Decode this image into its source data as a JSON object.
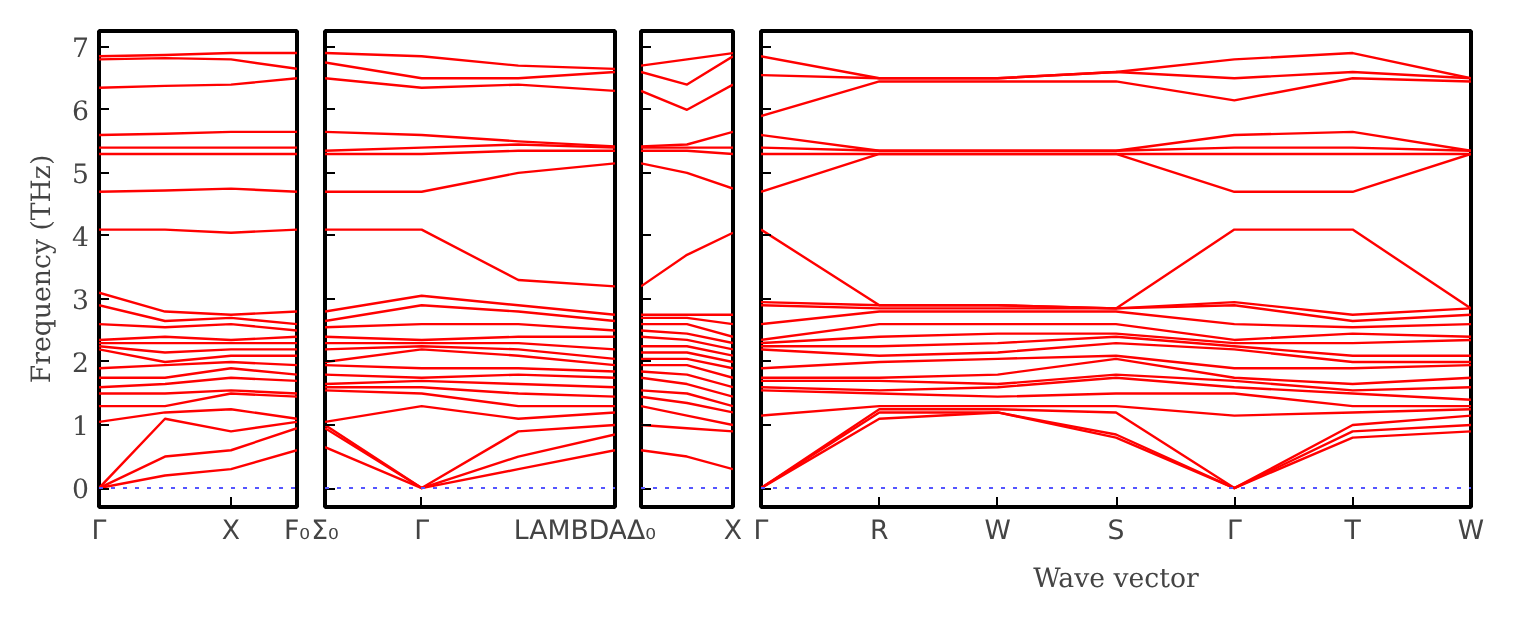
{
  "chart_data": [
    {
      "type": "line",
      "ylabel": "Frequency (THz)",
      "categories": [
        "Γ",
        null,
        "X",
        "F₀"
      ],
      "ylim": [
        -0.3,
        7.25
      ],
      "yticks": [
        0,
        1,
        2,
        3,
        4,
        5,
        6,
        7
      ],
      "ref_lines": [
        {
          "axis": "y",
          "value": 0,
          "label": null,
          "color": "#5555ff",
          "line_style": "dotted"
        }
      ],
      "line_style": "solid",
      "marker": "none",
      "series": [
        {
          "color": "#ff0000",
          "values": [
            0,
            0.2,
            0.3,
            0.6
          ]
        },
        {
          "color": "#ff0000",
          "values": [
            0,
            0.5,
            0.6,
            0.95
          ]
        },
        {
          "color": "#ff0000",
          "values": [
            0,
            1.1,
            0.9,
            1.05
          ]
        },
        {
          "color": "#ff0000",
          "values": [
            1.05,
            1.2,
            1.25,
            1.1
          ]
        },
        {
          "color": "#ff0000",
          "values": [
            1.3,
            1.3,
            1.5,
            1.45
          ]
        },
        {
          "color": "#ff0000",
          "values": [
            1.5,
            1.5,
            1.55,
            1.5
          ]
        },
        {
          "color": "#ff0000",
          "values": [
            1.6,
            1.65,
            1.75,
            1.7
          ]
        },
        {
          "color": "#ff0000",
          "values": [
            1.75,
            1.75,
            1.9,
            1.8
          ]
        },
        {
          "color": "#ff0000",
          "values": [
            1.9,
            1.95,
            2.0,
            1.95
          ]
        },
        {
          "color": "#ff0000",
          "values": [
            2.2,
            2.0,
            2.1,
            2.1
          ]
        },
        {
          "color": "#ff0000",
          "values": [
            2.25,
            2.15,
            2.2,
            2.2
          ]
        },
        {
          "color": "#ff0000",
          "values": [
            2.3,
            2.3,
            2.3,
            2.3
          ]
        },
        {
          "color": "#ff0000",
          "values": [
            2.35,
            2.4,
            2.35,
            2.4
          ]
        },
        {
          "color": "#ff0000",
          "values": [
            2.6,
            2.55,
            2.6,
            2.5
          ]
        },
        {
          "color": "#ff0000",
          "values": [
            2.9,
            2.65,
            2.7,
            2.6
          ]
        },
        {
          "color": "#ff0000",
          "values": [
            3.1,
            2.8,
            2.75,
            2.8
          ]
        },
        {
          "color": "#ff0000",
          "values": [
            4.1,
            4.1,
            4.05,
            4.1
          ]
        },
        {
          "color": "#ff0000",
          "values": [
            4.7,
            4.72,
            4.75,
            4.7
          ]
        },
        {
          "color": "#ff0000",
          "values": [
            5.3,
            5.3,
            5.3,
            5.3
          ]
        },
        {
          "color": "#ff0000",
          "values": [
            5.4,
            5.4,
            5.4,
            5.4
          ]
        },
        {
          "color": "#ff0000",
          "values": [
            5.6,
            5.62,
            5.65,
            5.65
          ]
        },
        {
          "color": "#ff0000",
          "values": [
            6.35,
            6.38,
            6.4,
            6.5
          ]
        },
        {
          "color": "#ff0000",
          "values": [
            6.8,
            6.82,
            6.8,
            6.65
          ]
        },
        {
          "color": "#ff0000",
          "values": [
            6.85,
            6.87,
            6.9,
            6.9
          ]
        }
      ]
    },
    {
      "type": "line",
      "tick_labels": "x",
      "categories": [
        "Σ₀",
        "Γ",
        null,
        "LAMBDA"
      ],
      "ylim": [
        -0.3,
        7.25
      ],
      "yticks": [
        0,
        1,
        2,
        3,
        4,
        5,
        6,
        7
      ],
      "ref_lines": [
        {
          "axis": "y",
          "value": 0,
          "label": null,
          "color": "#5555ff",
          "line_style": "dotted"
        }
      ],
      "line_style": "solid",
      "marker": "none",
      "series": [
        {
          "color": "#ff0000",
          "values": [
            0.65,
            0,
            0.3,
            0.6
          ]
        },
        {
          "color": "#ff0000",
          "values": [
            0.95,
            0,
            0.5,
            0.85
          ]
        },
        {
          "color": "#ff0000",
          "values": [
            1.0,
            0,
            0.9,
            1.0
          ]
        },
        {
          "color": "#ff0000",
          "values": [
            1.05,
            1.3,
            1.1,
            1.2
          ]
        },
        {
          "color": "#ff0000",
          "values": [
            1.55,
            1.5,
            1.3,
            1.3
          ]
        },
        {
          "color": "#ff0000",
          "values": [
            1.6,
            1.6,
            1.5,
            1.45
          ]
        },
        {
          "color": "#ff0000",
          "values": [
            1.65,
            1.7,
            1.65,
            1.6
          ]
        },
        {
          "color": "#ff0000",
          "values": [
            1.8,
            1.75,
            1.8,
            1.75
          ]
        },
        {
          "color": "#ff0000",
          "values": [
            1.95,
            1.9,
            1.9,
            1.85
          ]
        },
        {
          "color": "#ff0000",
          "values": [
            2.0,
            2.2,
            2.1,
            1.95
          ]
        },
        {
          "color": "#ff0000",
          "values": [
            2.2,
            2.25,
            2.2,
            2.05
          ]
        },
        {
          "color": "#ff0000",
          "values": [
            2.3,
            2.3,
            2.3,
            2.2
          ]
        },
        {
          "color": "#ff0000",
          "values": [
            2.4,
            2.35,
            2.4,
            2.4
          ]
        },
        {
          "color": "#ff0000",
          "values": [
            2.55,
            2.6,
            2.6,
            2.5
          ]
        },
        {
          "color": "#ff0000",
          "values": [
            2.65,
            2.9,
            2.8,
            2.65
          ]
        },
        {
          "color": "#ff0000",
          "values": [
            2.8,
            3.05,
            2.9,
            2.75
          ]
        },
        {
          "color": "#ff0000",
          "values": [
            4.1,
            4.1,
            3.3,
            3.2
          ]
        },
        {
          "color": "#ff0000",
          "values": [
            4.7,
            4.7,
            5.0,
            5.15
          ]
        },
        {
          "color": "#ff0000",
          "values": [
            5.3,
            5.3,
            5.35,
            5.35
          ]
        },
        {
          "color": "#ff0000",
          "values": [
            5.35,
            5.4,
            5.45,
            5.4
          ]
        },
        {
          "color": "#ff0000",
          "values": [
            5.65,
            5.6,
            5.5,
            5.42
          ]
        },
        {
          "color": "#ff0000",
          "values": [
            6.5,
            6.35,
            6.4,
            6.3
          ]
        },
        {
          "color": "#ff0000",
          "values": [
            6.75,
            6.5,
            6.5,
            6.6
          ]
        },
        {
          "color": "#ff0000",
          "values": [
            6.9,
            6.85,
            6.7,
            6.65
          ]
        }
      ]
    },
    {
      "type": "line",
      "tick_labels": "x",
      "categories": [
        "Δ₀",
        null,
        "X"
      ],
      "ylim": [
        -0.3,
        7.25
      ],
      "yticks": [
        0,
        1,
        2,
        3,
        4,
        5,
        6,
        7
      ],
      "ref_lines": [
        {
          "axis": "y",
          "value": 0,
          "label": null,
          "color": "#5555ff",
          "line_style": "dotted"
        }
      ],
      "line_style": "solid",
      "marker": "none",
      "series": [
        {
          "color": "#ff0000",
          "values": [
            0.6,
            0.5,
            0.3
          ]
        },
        {
          "color": "#ff0000",
          "values": [
            1.0,
            0.95,
            0.9
          ]
        },
        {
          "color": "#ff0000",
          "values": [
            1.3,
            1.15,
            1.0
          ]
        },
        {
          "color": "#ff0000",
          "values": [
            1.45,
            1.35,
            1.2
          ]
        },
        {
          "color": "#ff0000",
          "values": [
            1.55,
            1.5,
            1.3
          ]
        },
        {
          "color": "#ff0000",
          "values": [
            1.75,
            1.65,
            1.45
          ]
        },
        {
          "color": "#ff0000",
          "values": [
            1.85,
            1.8,
            1.6
          ]
        },
        {
          "color": "#ff0000",
          "values": [
            1.95,
            1.95,
            1.75
          ]
        },
        {
          "color": "#ff0000",
          "values": [
            2.05,
            2.05,
            1.9
          ]
        },
        {
          "color": "#ff0000",
          "values": [
            2.15,
            2.15,
            2.0
          ]
        },
        {
          "color": "#ff0000",
          "values": [
            2.25,
            2.25,
            2.1
          ]
        },
        {
          "color": "#ff0000",
          "values": [
            2.4,
            2.35,
            2.2
          ]
        },
        {
          "color": "#ff0000",
          "values": [
            2.5,
            2.45,
            2.3
          ]
        },
        {
          "color": "#ff0000",
          "values": [
            2.6,
            2.6,
            2.4
          ]
        },
        {
          "color": "#ff0000",
          "values": [
            2.7,
            2.7,
            2.6
          ]
        },
        {
          "color": "#ff0000",
          "values": [
            2.75,
            2.75,
            2.75
          ]
        },
        {
          "color": "#ff0000",
          "values": [
            3.2,
            3.7,
            4.05
          ]
        },
        {
          "color": "#ff0000",
          "values": [
            5.15,
            5.0,
            4.75
          ]
        },
        {
          "color": "#ff0000",
          "values": [
            5.35,
            5.35,
            5.3
          ]
        },
        {
          "color": "#ff0000",
          "values": [
            5.4,
            5.4,
            5.4
          ]
        },
        {
          "color": "#ff0000",
          "values": [
            5.42,
            5.45,
            5.65
          ]
        },
        {
          "color": "#ff0000",
          "values": [
            6.3,
            6.0,
            6.4
          ]
        },
        {
          "color": "#ff0000",
          "values": [
            6.6,
            6.4,
            6.85
          ]
        },
        {
          "color": "#ff0000",
          "values": [
            6.7,
            6.8,
            6.9
          ]
        }
      ]
    },
    {
      "type": "line",
      "tick_labels": "x",
      "xlabel": "Wave vector",
      "categories": [
        "Γ",
        "R",
        "W",
        "S",
        "Γ",
        "T",
        "W"
      ],
      "ylim": [
        -0.3,
        7.25
      ],
      "yticks": [
        0,
        1,
        2,
        3,
        4,
        5,
        6,
        7
      ],
      "ref_lines": [
        {
          "axis": "y",
          "value": 0,
          "label": null,
          "color": "#5555ff",
          "line_style": "dotted"
        }
      ],
      "line_style": "solid",
      "marker": "none",
      "series": [
        {
          "color": "#ff0000",
          "values": [
            0,
            1.1,
            1.2,
            0.8,
            0,
            0.8,
            0.9
          ]
        },
        {
          "color": "#ff0000",
          "values": [
            0,
            1.2,
            1.2,
            0.85,
            0,
            0.9,
            1.0
          ]
        },
        {
          "color": "#ff0000",
          "values": [
            0,
            1.25,
            1.25,
            1.2,
            0,
            1.0,
            1.15
          ]
        },
        {
          "color": "#ff0000",
          "values": [
            1.15,
            1.3,
            1.3,
            1.3,
            1.15,
            1.2,
            1.25
          ]
        },
        {
          "color": "#ff0000",
          "values": [
            1.55,
            1.5,
            1.45,
            1.5,
            1.5,
            1.3,
            1.3
          ]
        },
        {
          "color": "#ff0000",
          "values": [
            1.6,
            1.55,
            1.6,
            1.75,
            1.6,
            1.5,
            1.4
          ]
        },
        {
          "color": "#ff0000",
          "values": [
            1.7,
            1.7,
            1.65,
            1.8,
            1.7,
            1.55,
            1.6
          ]
        },
        {
          "color": "#ff0000",
          "values": [
            1.75,
            1.75,
            1.8,
            2.05,
            1.75,
            1.65,
            1.75
          ]
        },
        {
          "color": "#ff0000",
          "values": [
            1.9,
            2.0,
            2.05,
            2.1,
            1.9,
            1.9,
            1.95
          ]
        },
        {
          "color": "#ff0000",
          "values": [
            2.2,
            2.1,
            2.15,
            2.3,
            2.2,
            2.0,
            2.0
          ]
        },
        {
          "color": "#ff0000",
          "values": [
            2.25,
            2.25,
            2.3,
            2.4,
            2.25,
            2.1,
            2.1
          ]
        },
        {
          "color": "#ff0000",
          "values": [
            2.3,
            2.4,
            2.45,
            2.45,
            2.3,
            2.3,
            2.35
          ]
        },
        {
          "color": "#ff0000",
          "values": [
            2.35,
            2.6,
            2.6,
            2.6,
            2.35,
            2.45,
            2.4
          ]
        },
        {
          "color": "#ff0000",
          "values": [
            2.6,
            2.8,
            2.8,
            2.8,
            2.6,
            2.55,
            2.6
          ]
        },
        {
          "color": "#ff0000",
          "values": [
            2.9,
            2.85,
            2.85,
            2.85,
            2.9,
            2.65,
            2.75
          ]
        },
        {
          "color": "#ff0000",
          "values": [
            2.95,
            2.9,
            2.9,
            2.85,
            2.95,
            2.75,
            2.85
          ]
        },
        {
          "color": "#ff0000",
          "values": [
            4.1,
            2.9,
            2.9,
            2.85,
            4.1,
            4.1,
            2.85
          ]
        },
        {
          "color": "#ff0000",
          "values": [
            4.7,
            5.3,
            5.3,
            5.3,
            4.7,
            4.7,
            5.3
          ]
        },
        {
          "color": "#ff0000",
          "values": [
            5.3,
            5.3,
            5.3,
            5.3,
            5.3,
            5.3,
            5.3
          ]
        },
        {
          "color": "#ff0000",
          "values": [
            5.4,
            5.35,
            5.35,
            5.35,
            5.4,
            5.4,
            5.35
          ]
        },
        {
          "color": "#ff0000",
          "values": [
            5.6,
            5.35,
            5.35,
            5.35,
            5.6,
            5.65,
            5.35
          ]
        },
        {
          "color": "#ff0000",
          "values": [
            5.9,
            6.45,
            6.45,
            6.45,
            6.15,
            6.5,
            6.45
          ]
        },
        {
          "color": "#ff0000",
          "values": [
            6.55,
            6.5,
            6.5,
            6.6,
            6.5,
            6.6,
            6.5
          ]
        },
        {
          "color": "#ff0000",
          "values": [
            6.85,
            6.5,
            6.5,
            6.6,
            6.8,
            6.9,
            6.5
          ]
        }
      ]
    }
  ]
}
